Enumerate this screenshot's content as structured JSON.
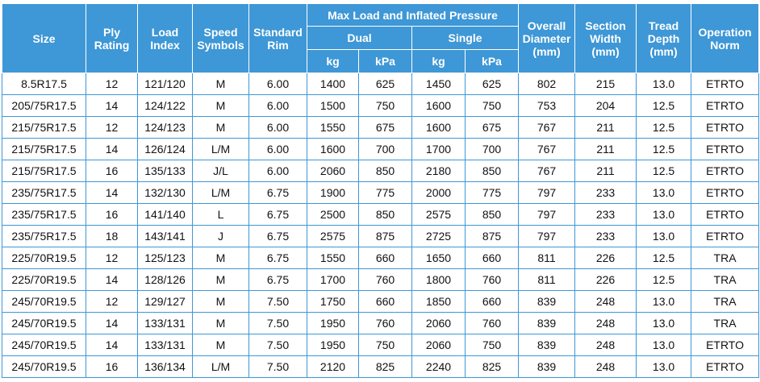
{
  "header": {
    "size": "Size",
    "ply_rating": "Ply Rating",
    "load_index": "Load Index",
    "speed_symbols": "Speed Symbols",
    "standard_rim": "Standard Rim",
    "max_load": "Max Load and Inflated Pressure",
    "dual": "Dual",
    "single": "Single",
    "kg": "kg",
    "kpa": "kPa",
    "overall_diameter": "Overall Diameter (mm)",
    "section_width": "Section Width (mm)",
    "tread_depth": "Tread Depth (mm)",
    "operation_norm": "Operation Norm"
  },
  "rows": [
    [
      "8.5R17.5",
      "12",
      "121/120",
      "M",
      "6.00",
      "1400",
      "625",
      "1450",
      "625",
      "802",
      "215",
      "13.0",
      "ETRTO"
    ],
    [
      "205/75R17.5",
      "14",
      "124/122",
      "M",
      "6.00",
      "1500",
      "750",
      "1600",
      "750",
      "753",
      "204",
      "12.5",
      "ETRTO"
    ],
    [
      "215/75R17.5",
      "12",
      "124/123",
      "M",
      "6.00",
      "1550",
      "675",
      "1600",
      "675",
      "767",
      "211",
      "12.5",
      "ETRTO"
    ],
    [
      "215/75R17.5",
      "14",
      "126/124",
      "L/M",
      "6.00",
      "1600",
      "700",
      "1700",
      "700",
      "767",
      "211",
      "12.5",
      "ETRTO"
    ],
    [
      "215/75R17.5",
      "16",
      "135/133",
      "J/L",
      "6.00",
      "2060",
      "850",
      "2180",
      "850",
      "767",
      "211",
      "12.5",
      "ETRTO"
    ],
    [
      "235/75R17.5",
      "14",
      "132/130",
      "L/M",
      "6.75",
      "1900",
      "775",
      "2000",
      "775",
      "797",
      "233",
      "13.0",
      "ETRTO"
    ],
    [
      "235/75R17.5",
      "16",
      "141/140",
      "L",
      "6.75",
      "2500",
      "850",
      "2575",
      "850",
      "797",
      "233",
      "13.0",
      "ETRTO"
    ],
    [
      "235/75R17.5",
      "18",
      "143/141",
      "J",
      "6.75",
      "2575",
      "875",
      "2725",
      "875",
      "797",
      "233",
      "13.0",
      "ETRTO"
    ],
    [
      "225/70R19.5",
      "12",
      "125/123",
      "M",
      "6.75",
      "1550",
      "660",
      "1650",
      "660",
      "811",
      "226",
      "12.5",
      "TRA"
    ],
    [
      "225/70R19.5",
      "14",
      "128/126",
      "M",
      "6.75",
      "1700",
      "760",
      "1800",
      "760",
      "811",
      "226",
      "12.5",
      "TRA"
    ],
    [
      "245/70R19.5",
      "12",
      "129/127",
      "M",
      "7.50",
      "1750",
      "660",
      "1850",
      "660",
      "839",
      "248",
      "13.0",
      "TRA"
    ],
    [
      "245/70R19.5",
      "14",
      "133/131",
      "M",
      "7.50",
      "1950",
      "760",
      "2060",
      "760",
      "839",
      "248",
      "13.0",
      "TRA"
    ],
    [
      "245/70R19.5",
      "14",
      "133/131",
      "M",
      "7.50",
      "1950",
      "750",
      "2060",
      "750",
      "839",
      "248",
      "13.0",
      "ETRTO"
    ],
    [
      "245/70R19.5",
      "16",
      "136/134",
      "L/M",
      "7.50",
      "2120",
      "825",
      "2240",
      "825",
      "839",
      "248",
      "13.0",
      "ETRTO"
    ]
  ]
}
